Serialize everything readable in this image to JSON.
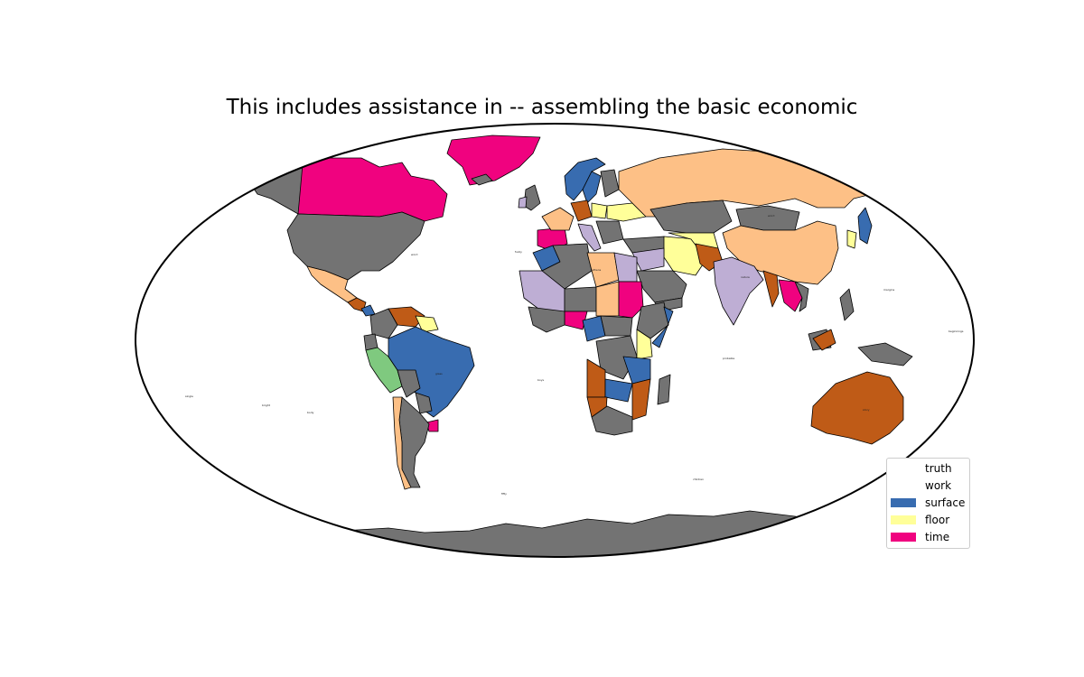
{
  "title": "This includes assistance in -- assembling the basic economic",
  "legend": [
    {
      "label": "truth",
      "color": "#7fc97f"
    },
    {
      "label": "work",
      "color": "#beaed4"
    },
    {
      "label": "surface",
      "color": "#386cb0"
    },
    {
      "label": "floor",
      "color": "#ffff99"
    },
    {
      "label": "time",
      "color": "#f0027f"
    }
  ],
  "palette": {
    "gray": "#737373",
    "peach": "#fdc086",
    "brown": "#bf5b17",
    "blue": "#386cb0",
    "yellow": "#ffff99",
    "magenta": "#f0027f",
    "lavender": "#beaed4",
    "green": "#7fc97f",
    "ocean": "#ffffff"
  }
}
